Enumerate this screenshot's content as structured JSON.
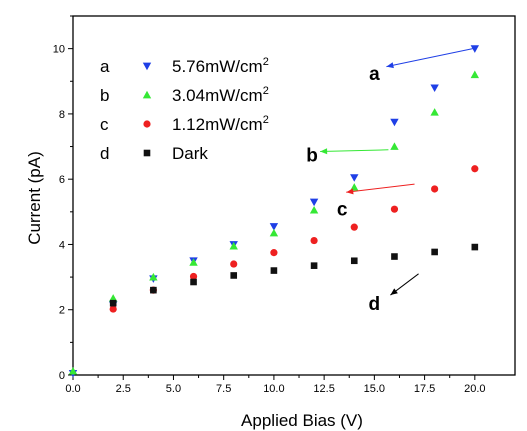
{
  "chart_data": {
    "type": "scatter",
    "xlabel": "Applied Bias (V)",
    "ylabel": "Current (pA)",
    "xlim": [
      0,
      22
    ],
    "ylim": [
      0,
      11
    ],
    "x_ticks": [
      0.0,
      2.5,
      5.0,
      7.5,
      10.0,
      12.5,
      15.0,
      17.5,
      20.0
    ],
    "x_tick_labels": [
      "0.0",
      "2.5",
      "5.0",
      "7.5",
      "10.0",
      "12.5",
      "15.0",
      "17.5",
      "20.0"
    ],
    "y_ticks": [
      0,
      2,
      4,
      6,
      8,
      10
    ],
    "y_tick_labels": [
      "0",
      "2",
      "4",
      "6",
      "8",
      "10"
    ],
    "grid": false,
    "legend_position": "top-left",
    "series": [
      {
        "key": "a",
        "name": "5.76mW/cm",
        "name_sup": "2",
        "marker": "triangle-down",
        "color": "#1f3fe6",
        "x": [
          0,
          2,
          4,
          6,
          8,
          10,
          12,
          14,
          16,
          18,
          20
        ],
        "y": [
          0.05,
          2.15,
          2.95,
          3.5,
          4.0,
          4.55,
          5.3,
          6.05,
          7.75,
          8.8,
          10.0
        ]
      },
      {
        "key": "b",
        "name": "3.04mW/cm",
        "name_sup": "2",
        "marker": "triangle-up",
        "color": "#35e835",
        "x": [
          0,
          2,
          4,
          6,
          8,
          10,
          12,
          14,
          16,
          18,
          20
        ],
        "y": [
          0.12,
          2.35,
          3.0,
          3.45,
          3.95,
          4.35,
          5.05,
          5.75,
          7.0,
          8.05,
          9.2
        ]
      },
      {
        "key": "c",
        "name": "1.12mW/cm",
        "name_sup": "2",
        "marker": "circle",
        "color": "#ee2020",
        "x": [
          2,
          4,
          6,
          8,
          10,
          12,
          14,
          16,
          18,
          20
        ],
        "y": [
          2.02,
          2.6,
          3.02,
          3.4,
          3.75,
          4.12,
          4.53,
          5.08,
          5.7,
          6.32
        ]
      },
      {
        "key": "d",
        "name": "Dark",
        "name_sup": "",
        "marker": "square",
        "color": "#111111",
        "x": [
          2,
          4,
          6,
          8,
          10,
          12,
          14,
          16,
          18,
          20
        ],
        "y": [
          2.2,
          2.6,
          2.85,
          3.05,
          3.2,
          3.35,
          3.5,
          3.63,
          3.77,
          3.92
        ]
      }
    ],
    "annotations": [
      {
        "text": "a",
        "color": "#000000",
        "arrow_color": "#1f3fe6",
        "arrow_from": [
          19.9,
          10.0
        ],
        "arrow_to": [
          15.6,
          9.45
        ],
        "label_at": [
          15.0,
          9.25
        ]
      },
      {
        "text": "b",
        "color": "#000000",
        "arrow_color": "#35e835",
        "arrow_from": [
          15.7,
          6.9
        ],
        "arrow_to": [
          12.3,
          6.85
        ],
        "label_at": [
          11.9,
          6.75
        ]
      },
      {
        "text": "c",
        "color": "#000000",
        "arrow_color": "#ee2020",
        "arrow_from": [
          17.0,
          5.85
        ],
        "arrow_to": [
          13.6,
          5.6
        ],
        "label_at": [
          13.4,
          5.1
        ]
      },
      {
        "text": "d",
        "color": "#000000",
        "arrow_color": "#000000",
        "arrow_from": [
          17.2,
          3.1
        ],
        "arrow_to": [
          15.8,
          2.45
        ],
        "label_at": [
          15.0,
          2.2
        ]
      }
    ]
  }
}
